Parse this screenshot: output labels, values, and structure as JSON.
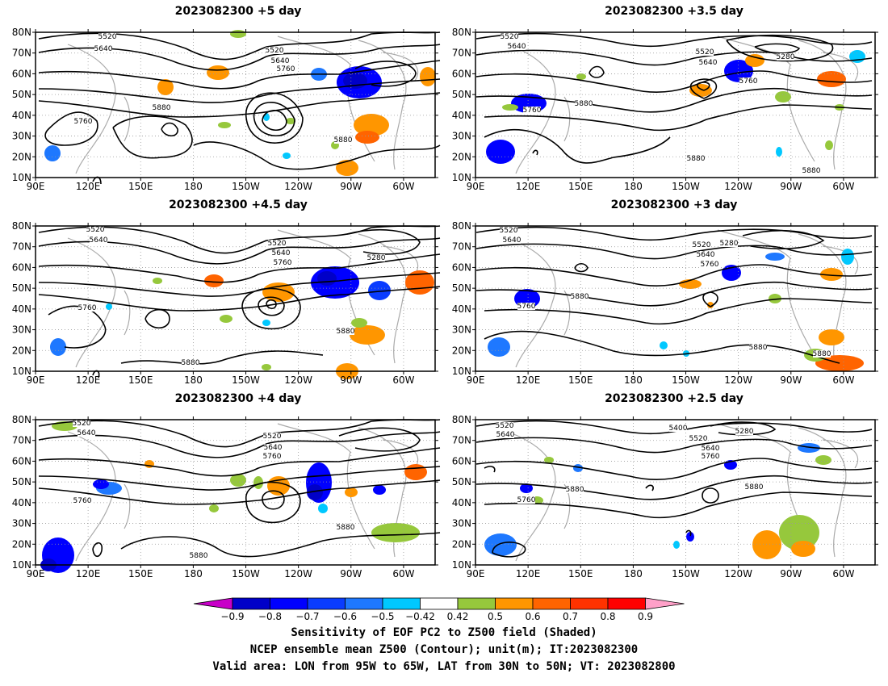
{
  "panels": [
    {
      "id": "p1",
      "title": "2023082300 +5 day"
    },
    {
      "id": "p2",
      "title": "2023082300 +3.5 day"
    },
    {
      "id": "p3",
      "title": "2023082300 +4.5 day"
    },
    {
      "id": "p4",
      "title": "2023082300 +3 day"
    },
    {
      "id": "p5",
      "title": "2023082300 +4 day"
    },
    {
      "id": "p6",
      "title": "2023082300 +2.5 day"
    }
  ],
  "axes": {
    "lat_labels": [
      "80N",
      "70N",
      "60N",
      "50N",
      "40N",
      "30N",
      "20N",
      "10N"
    ],
    "lon_labels": [
      "90E",
      "120E",
      "150E",
      "180",
      "150W",
      "120W",
      "90W",
      "60W"
    ]
  },
  "colorbar": {
    "labels": [
      "−0.9",
      "−0.8",
      "−0.7",
      "−0.6",
      "−0.5",
      "−0.42",
      "0.42",
      "0.5",
      "0.6",
      "0.7",
      "0.8",
      "0.9"
    ],
    "colors": [
      "#c800c8",
      "#0000c8",
      "#0000ff",
      "#0a3cff",
      "#1e78ff",
      "#00c8ff",
      "#ffffff",
      "#96c83c",
      "#ff9600",
      "#ff6400",
      "#ff3200",
      "#ff0000",
      "#ffa0c8"
    ]
  },
  "caption": {
    "line1": "Sensitivity of EOF PC2 to Z500 field (Shaded)",
    "line2": "NCEP ensemble mean Z500 (Contour); unit(m); IT:2023082300",
    "line3": "Valid area: LON from 95W to 65W, LAT from 30N to 50N; VT: 2023082800"
  },
  "contour_labels": {
    "p1": [
      "5520",
      "5640",
      "5520",
      "5640",
      "5760",
      "5880",
      "5760",
      "5880"
    ],
    "p2": [
      "5520",
      "5640",
      "5520",
      "5640",
      "5280",
      "5760",
      "5760",
      "5880",
      "5880",
      "5880"
    ],
    "p3": [
      "5520",
      "5640",
      "5520",
      "5640",
      "5760",
      "5280",
      "5760",
      "5880",
      "5880"
    ],
    "p4": [
      "5520",
      "5640",
      "5520",
      "5640",
      "5280",
      "5760",
      "5760",
      "5880",
      "5880",
      "5880"
    ],
    "p5": [
      "5520",
      "5640",
      "5520",
      "5640",
      "5760",
      "5760",
      "5880",
      "5880"
    ],
    "p6": [
      "5520",
      "5640",
      "5400",
      "5280",
      "5520",
      "5640",
      "5760",
      "5760",
      "5880",
      "5880"
    ]
  }
}
